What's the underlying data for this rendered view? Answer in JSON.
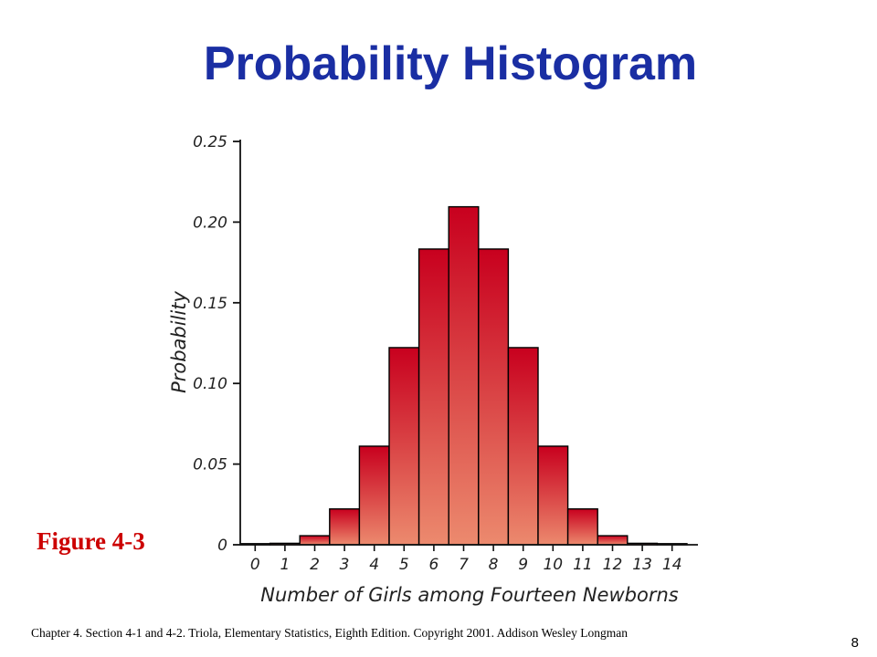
{
  "slide": {
    "title": "Probability Histogram",
    "figure_label": "Figure 4-3",
    "footer": "Chapter 4. Section 4-1 and 4-2. Triola, Elementary Statistics, Eighth Edition. Copyright  2001.  Addison Wesley Longman",
    "page_number": "8"
  },
  "colors": {
    "title": "#1a2ea3",
    "figure_label": "#cc0000",
    "bar_top": "#c8001e",
    "bar_bottom": "#ec8a6e",
    "bar_outline": "#000000"
  },
  "chart_data": {
    "type": "bar",
    "title": "",
    "xlabel": "Number of Girls among Fourteen Newborns",
    "ylabel": "Probability",
    "categories": [
      "0",
      "1",
      "2",
      "3",
      "4",
      "5",
      "6",
      "7",
      "8",
      "9",
      "10",
      "11",
      "12",
      "13",
      "14"
    ],
    "values": [
      0.0001,
      0.0009,
      0.0056,
      0.0222,
      0.0611,
      0.1222,
      0.1833,
      0.2095,
      0.1833,
      0.1222,
      0.0611,
      0.0222,
      0.0056,
      0.0009,
      0.0001
    ],
    "ylim": [
      0,
      0.25
    ],
    "yticks": [
      0,
      0.05,
      0.1,
      0.15,
      0.2,
      0.25
    ],
    "ytick_labels": [
      "0",
      "0.05",
      "0.10",
      "0.15",
      "0.20",
      "0.25"
    ],
    "grid": false,
    "legend": "none"
  }
}
